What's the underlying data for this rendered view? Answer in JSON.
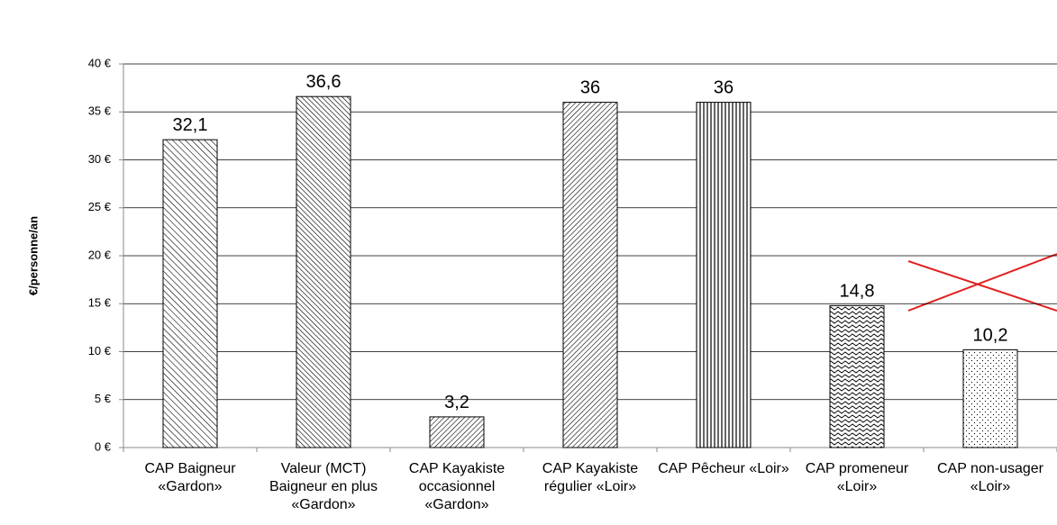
{
  "chart_data": {
    "type": "bar",
    "y_axis_label": "€/personne/an",
    "categories": [
      "CAP Baigneur «Gardon»",
      "Valeur (MCT) Baigneur en plus «Gardon»",
      "CAP Kayakiste occasionnel «Gardon»",
      "CAP Kayakiste régulier «Loir»",
      "CAP Pêcheur «Loir»",
      "CAP promeneur «Loir»",
      "CAP non-usager «Loir»"
    ],
    "values": [
      32.1,
      36.6,
      3.2,
      36,
      36,
      14.8,
      10.2
    ],
    "value_labels": [
      "32,1",
      "36,6",
      "3,2",
      "36",
      "36",
      "14,8",
      "10,2"
    ],
    "color": "#000000",
    "ylim": [
      0,
      40
    ],
    "yticks": [
      {
        "value": 0,
        "label": "0 €"
      },
      {
        "value": 5,
        "label": "5 €"
      },
      {
        "value": 10,
        "label": "10 €"
      },
      {
        "value": 15,
        "label": "15 €"
      },
      {
        "value": 20,
        "label": "20 €"
      },
      {
        "value": 25,
        "label": "25 €"
      },
      {
        "value": 30,
        "label": "30 €"
      },
      {
        "value": 35,
        "label": "35 €"
      },
      {
        "value": 40,
        "label": "40 €"
      }
    ],
    "grid": true
  }
}
